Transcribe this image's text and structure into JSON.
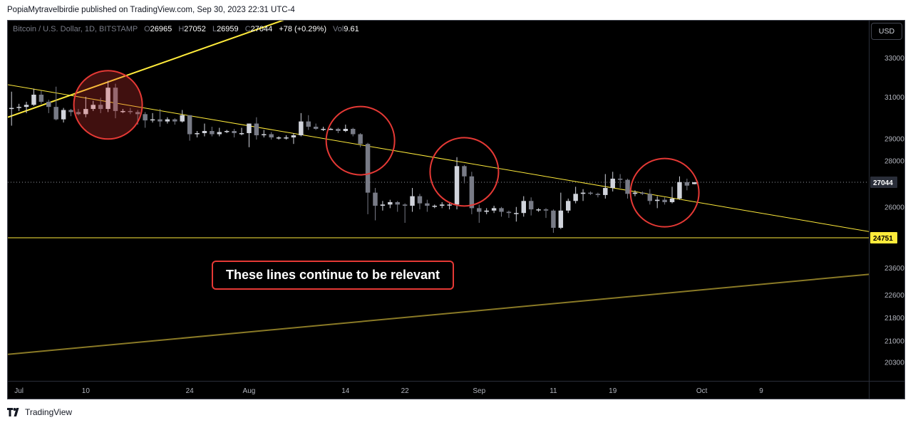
{
  "header": {
    "published_text": "PopiaMytravelbirdie published on TradingView.com, Sep 30, 2023 22:31 UTC-4"
  },
  "legend": {
    "symbol": "Bitcoin / U.S. Dollar, 1D, BITSTAMP",
    "open_label": "O",
    "open": "26965",
    "high_label": "H",
    "high": "27052",
    "low_label": "L",
    "low": "26959",
    "close_label": "C",
    "close": "27044",
    "change": "+78 (+0.29%)",
    "vol_label": "Vol",
    "vol": "9.61"
  },
  "currency_button": "USD",
  "annotation": "These lines continue to be relevant",
  "footer": {
    "brand": "TradingView"
  },
  "colors": {
    "up": "#d1d4dc",
    "down": "#787b86",
    "trend": "#ffeb3b",
    "circle": "#e53935",
    "background": "#000000"
  },
  "chart_data": {
    "type": "candlestick",
    "y_scale": "log",
    "y_ticks": [
      33000,
      31000,
      29000,
      28000,
      26000,
      23600,
      22600,
      21800,
      21000,
      20300
    ],
    "y_range": [
      19700,
      35000
    ],
    "price_labels": [
      {
        "value": 27044,
        "text": "27044"
      },
      {
        "value": 24751,
        "text": "24751"
      }
    ],
    "x_ticks": [
      {
        "date": "2023-07-01",
        "label": "Jul"
      },
      {
        "date": "2023-07-10",
        "label": "10"
      },
      {
        "date": "2023-07-24",
        "label": "24"
      },
      {
        "date": "2023-08-01",
        "label": "Aug"
      },
      {
        "date": "2023-08-14",
        "label": "14"
      },
      {
        "date": "2023-08-22",
        "label": "22"
      },
      {
        "date": "2023-09-01",
        "label": "Sep"
      },
      {
        "date": "2023-09-11",
        "label": "11"
      },
      {
        "date": "2023-09-19",
        "label": "19"
      },
      {
        "date": "2023-10-01",
        "label": "Oct"
      },
      {
        "date": "2023-10-09",
        "label": "9"
      }
    ],
    "x_range": [
      "2023-06-30",
      "2023-10-24"
    ],
    "candles": [
      {
        "date": "2023-06-30",
        "o": 30450,
        "h": 31250,
        "l": 29600,
        "c": 30450
      },
      {
        "date": "2023-07-01",
        "o": 30450,
        "h": 30650,
        "l": 30300,
        "c": 30500
      },
      {
        "date": "2023-07-02",
        "o": 30500,
        "h": 30750,
        "l": 30200,
        "c": 30600
      },
      {
        "date": "2023-07-03",
        "o": 30600,
        "h": 31400,
        "l": 30550,
        "c": 31100
      },
      {
        "date": "2023-07-04",
        "o": 31100,
        "h": 31300,
        "l": 30650,
        "c": 30750
      },
      {
        "date": "2023-07-05",
        "o": 30750,
        "h": 30850,
        "l": 30200,
        "c": 30500
      },
      {
        "date": "2023-07-06",
        "o": 30500,
        "h": 31500,
        "l": 29850,
        "c": 29900
      },
      {
        "date": "2023-07-07",
        "o": 29900,
        "h": 30450,
        "l": 29750,
        "c": 30350
      },
      {
        "date": "2023-07-08",
        "o": 30350,
        "h": 30400,
        "l": 30050,
        "c": 30250
      },
      {
        "date": "2023-07-09",
        "o": 30250,
        "h": 30400,
        "l": 30100,
        "c": 30150
      },
      {
        "date": "2023-07-10",
        "o": 30150,
        "h": 31000,
        "l": 30000,
        "c": 30400
      },
      {
        "date": "2023-07-11",
        "o": 30400,
        "h": 30800,
        "l": 30300,
        "c": 30600
      },
      {
        "date": "2023-07-12",
        "o": 30600,
        "h": 30950,
        "l": 30200,
        "c": 30400
      },
      {
        "date": "2023-07-13",
        "o": 30400,
        "h": 31800,
        "l": 30250,
        "c": 31450
      },
      {
        "date": "2023-07-14",
        "o": 31450,
        "h": 31650,
        "l": 29950,
        "c": 30300
      },
      {
        "date": "2023-07-15",
        "o": 30300,
        "h": 30400,
        "l": 30200,
        "c": 30300
      },
      {
        "date": "2023-07-16",
        "o": 30300,
        "h": 30450,
        "l": 30150,
        "c": 30250
      },
      {
        "date": "2023-07-17",
        "o": 30250,
        "h": 30350,
        "l": 29650,
        "c": 30150
      },
      {
        "date": "2023-07-18",
        "o": 30150,
        "h": 30250,
        "l": 29500,
        "c": 29850
      },
      {
        "date": "2023-07-19",
        "o": 29850,
        "h": 30200,
        "l": 29750,
        "c": 29900
      },
      {
        "date": "2023-07-20",
        "o": 29900,
        "h": 30400,
        "l": 29550,
        "c": 29800
      },
      {
        "date": "2023-07-21",
        "o": 29800,
        "h": 30000,
        "l": 29700,
        "c": 29900
      },
      {
        "date": "2023-07-22",
        "o": 29900,
        "h": 29950,
        "l": 29650,
        "c": 29800
      },
      {
        "date": "2023-07-23",
        "o": 29800,
        "h": 30350,
        "l": 29750,
        "c": 30100
      },
      {
        "date": "2023-07-24",
        "o": 30100,
        "h": 30100,
        "l": 28900,
        "c": 29200
      },
      {
        "date": "2023-07-25",
        "o": 29200,
        "h": 29350,
        "l": 29050,
        "c": 29250
      },
      {
        "date": "2023-07-26",
        "o": 29250,
        "h": 29700,
        "l": 29100,
        "c": 29350
      },
      {
        "date": "2023-07-27",
        "o": 29350,
        "h": 29550,
        "l": 29100,
        "c": 29200
      },
      {
        "date": "2023-07-28",
        "o": 29200,
        "h": 29500,
        "l": 29100,
        "c": 29300
      },
      {
        "date": "2023-07-29",
        "o": 29300,
        "h": 29400,
        "l": 29250,
        "c": 29350
      },
      {
        "date": "2023-07-30",
        "o": 29350,
        "h": 29450,
        "l": 29050,
        "c": 29250
      },
      {
        "date": "2023-07-31",
        "o": 29250,
        "h": 29500,
        "l": 29150,
        "c": 29250
      },
      {
        "date": "2023-08-01",
        "o": 29250,
        "h": 29700,
        "l": 28600,
        "c": 29700
      },
      {
        "date": "2023-08-02",
        "o": 29700,
        "h": 30000,
        "l": 28950,
        "c": 29150
      },
      {
        "date": "2023-08-03",
        "o": 29150,
        "h": 29400,
        "l": 29050,
        "c": 29200
      },
      {
        "date": "2023-08-04",
        "o": 29200,
        "h": 29300,
        "l": 28950,
        "c": 29050
      },
      {
        "date": "2023-08-05",
        "o": 29050,
        "h": 29100,
        "l": 28950,
        "c": 29050
      },
      {
        "date": "2023-08-06",
        "o": 29050,
        "h": 29150,
        "l": 28950,
        "c": 29050
      },
      {
        "date": "2023-08-07",
        "o": 29050,
        "h": 29250,
        "l": 28750,
        "c": 29150
      },
      {
        "date": "2023-08-08",
        "o": 29150,
        "h": 30200,
        "l": 29100,
        "c": 29800
      },
      {
        "date": "2023-08-09",
        "o": 29800,
        "h": 30100,
        "l": 29400,
        "c": 29550
      },
      {
        "date": "2023-08-10",
        "o": 29550,
        "h": 29700,
        "l": 29400,
        "c": 29450
      },
      {
        "date": "2023-08-11",
        "o": 29450,
        "h": 29550,
        "l": 29350,
        "c": 29450
      },
      {
        "date": "2023-08-12",
        "o": 29450,
        "h": 29500,
        "l": 29400,
        "c": 29450
      },
      {
        "date": "2023-08-13",
        "o": 29450,
        "h": 29500,
        "l": 29250,
        "c": 29350
      },
      {
        "date": "2023-08-14",
        "o": 29350,
        "h": 29650,
        "l": 29300,
        "c": 29450
      },
      {
        "date": "2023-08-15",
        "o": 29450,
        "h": 29500,
        "l": 29100,
        "c": 29200
      },
      {
        "date": "2023-08-16",
        "o": 29200,
        "h": 29250,
        "l": 28600,
        "c": 28750
      },
      {
        "date": "2023-08-17",
        "o": 28750,
        "h": 28800,
        "l": 25700,
        "c": 26600
      },
      {
        "date": "2023-08-18",
        "o": 26600,
        "h": 26800,
        "l": 25450,
        "c": 26050
      },
      {
        "date": "2023-08-19",
        "o": 26050,
        "h": 26250,
        "l": 25850,
        "c": 26100
      },
      {
        "date": "2023-08-20",
        "o": 26100,
        "h": 26300,
        "l": 25950,
        "c": 26200
      },
      {
        "date": "2023-08-21",
        "o": 26200,
        "h": 26250,
        "l": 25800,
        "c": 26100
      },
      {
        "date": "2023-08-22",
        "o": 26100,
        "h": 26150,
        "l": 25350,
        "c": 26050
      },
      {
        "date": "2023-08-23",
        "o": 26050,
        "h": 26800,
        "l": 25800,
        "c": 26450
      },
      {
        "date": "2023-08-24",
        "o": 26450,
        "h": 26550,
        "l": 25900,
        "c": 26150
      },
      {
        "date": "2023-08-25",
        "o": 26150,
        "h": 26300,
        "l": 25800,
        "c": 26050
      },
      {
        "date": "2023-08-26",
        "o": 26050,
        "h": 26100,
        "l": 25950,
        "c": 26050
      },
      {
        "date": "2023-08-27",
        "o": 26050,
        "h": 26200,
        "l": 25950,
        "c": 26100
      },
      {
        "date": "2023-08-28",
        "o": 26100,
        "h": 26200,
        "l": 25900,
        "c": 26100
      },
      {
        "date": "2023-08-29",
        "o": 26100,
        "h": 28150,
        "l": 25900,
        "c": 27750
      },
      {
        "date": "2023-08-30",
        "o": 27750,
        "h": 27800,
        "l": 27000,
        "c": 27300
      },
      {
        "date": "2023-08-31",
        "o": 27300,
        "h": 27500,
        "l": 25700,
        "c": 25950
      },
      {
        "date": "2023-09-01",
        "o": 25950,
        "h": 26100,
        "l": 25350,
        "c": 25800
      },
      {
        "date": "2023-09-02",
        "o": 25800,
        "h": 25950,
        "l": 25700,
        "c": 25850
      },
      {
        "date": "2023-09-03",
        "o": 25850,
        "h": 26050,
        "l": 25750,
        "c": 25950
      },
      {
        "date": "2023-09-04",
        "o": 25950,
        "h": 26000,
        "l": 25600,
        "c": 25800
      },
      {
        "date": "2023-09-05",
        "o": 25800,
        "h": 25850,
        "l": 25550,
        "c": 25750
      },
      {
        "date": "2023-09-06",
        "o": 25750,
        "h": 26000,
        "l": 25400,
        "c": 25750
      },
      {
        "date": "2023-09-07",
        "o": 25750,
        "h": 26450,
        "l": 25600,
        "c": 26250
      },
      {
        "date": "2023-09-08",
        "o": 26250,
        "h": 26400,
        "l": 25650,
        "c": 25900
      },
      {
        "date": "2023-09-09",
        "o": 25900,
        "h": 25950,
        "l": 25800,
        "c": 25900
      },
      {
        "date": "2023-09-10",
        "o": 25900,
        "h": 25950,
        "l": 25550,
        "c": 25850
      },
      {
        "date": "2023-09-11",
        "o": 25850,
        "h": 25900,
        "l": 24950,
        "c": 25150
      },
      {
        "date": "2023-09-12",
        "o": 25150,
        "h": 26600,
        "l": 25100,
        "c": 25850
      },
      {
        "date": "2023-09-13",
        "o": 25850,
        "h": 26350,
        "l": 25750,
        "c": 26250
      },
      {
        "date": "2023-09-14",
        "o": 26250,
        "h": 26850,
        "l": 26150,
        "c": 26550
      },
      {
        "date": "2023-09-15",
        "o": 26550,
        "h": 26750,
        "l": 26250,
        "c": 26600
      },
      {
        "date": "2023-09-16",
        "o": 26600,
        "h": 26650,
        "l": 26500,
        "c": 26550
      },
      {
        "date": "2023-09-17",
        "o": 26550,
        "h": 26600,
        "l": 26400,
        "c": 26500
      },
      {
        "date": "2023-09-18",
        "o": 26500,
        "h": 27400,
        "l": 26350,
        "c": 26800
      },
      {
        "date": "2023-09-19",
        "o": 26800,
        "h": 27500,
        "l": 26650,
        "c": 27200
      },
      {
        "date": "2023-09-20",
        "o": 27200,
        "h": 27400,
        "l": 26800,
        "c": 27150
      },
      {
        "date": "2023-09-21",
        "o": 27150,
        "h": 27200,
        "l": 26350,
        "c": 26550
      },
      {
        "date": "2023-09-22",
        "o": 26550,
        "h": 26700,
        "l": 26450,
        "c": 26600
      },
      {
        "date": "2023-09-23",
        "o": 26600,
        "h": 26650,
        "l": 26500,
        "c": 26550
      },
      {
        "date": "2023-09-24",
        "o": 26550,
        "h": 26750,
        "l": 26100,
        "c": 26250
      },
      {
        "date": "2023-09-25",
        "o": 26250,
        "h": 26450,
        "l": 25950,
        "c": 26300
      },
      {
        "date": "2023-09-26",
        "o": 26300,
        "h": 26400,
        "l": 26100,
        "c": 26200
      },
      {
        "date": "2023-09-27",
        "o": 26200,
        "h": 26850,
        "l": 26150,
        "c": 26350
      },
      {
        "date": "2023-09-28",
        "o": 26350,
        "h": 27300,
        "l": 26300,
        "c": 27050
      },
      {
        "date": "2023-09-29",
        "o": 27050,
        "h": 27200,
        "l": 26700,
        "c": 26900
      },
      {
        "date": "2023-09-30",
        "o": 26965,
        "h": 27052,
        "l": 26959,
        "c": 27044
      }
    ],
    "trend_lines": [
      {
        "style": "bright",
        "from": {
          "date": "2023-06-30",
          "price": 30000
        },
        "to": {
          "date": "2023-08-16",
          "price": 36500
        }
      },
      {
        "style": "thin",
        "from": {
          "date": "2023-06-30",
          "price": 31600
        },
        "to": {
          "date": "2023-10-24",
          "price": 25000
        }
      },
      {
        "style": "thin",
        "from": {
          "date": "2023-06-30",
          "price": 24751
        },
        "to": {
          "date": "2023-10-24",
          "price": 24751
        }
      },
      {
        "style": "dim",
        "from": {
          "date": "2023-06-30",
          "price": 20550
        },
        "to": {
          "date": "2023-10-24",
          "price": 23350
        }
      }
    ],
    "circles": [
      {
        "date": "2023-07-13",
        "price": 30600
      },
      {
        "date": "2023-08-16",
        "price": 28900
      },
      {
        "date": "2023-08-30",
        "price": 27500
      },
      {
        "date": "2023-09-26",
        "price": 26600
      }
    ]
  }
}
